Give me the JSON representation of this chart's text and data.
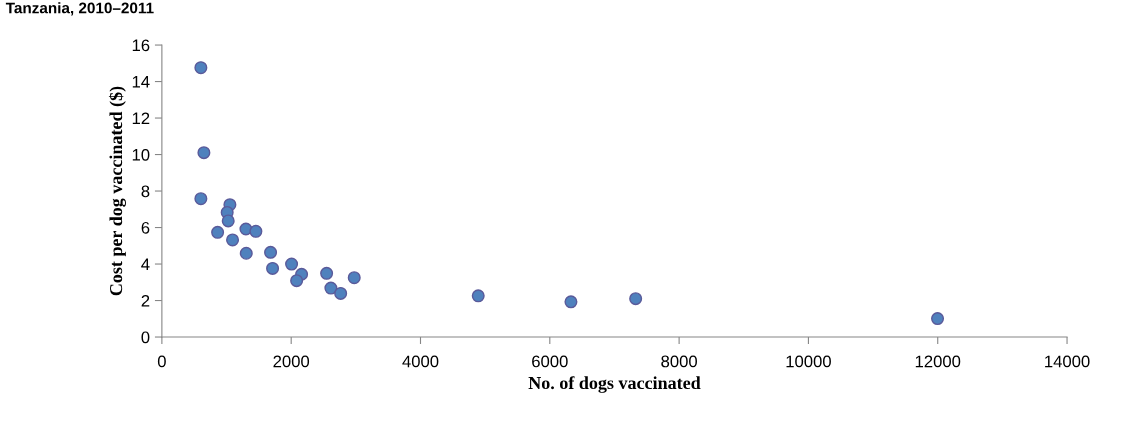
{
  "chart_data": {
    "type": "scatter",
    "title": "Tanzania, 2010–2011",
    "xlabel": "No. of dogs vaccinated",
    "ylabel": "Cost per dog vaccinated ($)",
    "x": [
      603,
      650,
      603,
      1052,
      1010,
      1026,
      862,
      1300,
      1454,
      1093,
      1305,
      1681,
      1712,
      2006,
      2161,
      2084,
      2548,
      2614,
      2765,
      2975,
      4893,
      6327,
      7328,
      11997
    ],
    "series": [
      {
        "color": "#4f81bd",
        "values": [
          14.76,
          10.1,
          7.58,
          7.25,
          6.83,
          6.36,
          5.74,
          5.92,
          5.79,
          5.32,
          4.59,
          4.64,
          3.76,
          4.0,
          3.44,
          3.09,
          3.49,
          2.68,
          2.39,
          3.25,
          2.26,
          1.93,
          2.1,
          1.01
        ]
      }
    ],
    "xlim": [
      0,
      14000
    ],
    "xticks": [
      0,
      2000,
      4000,
      6000,
      8000,
      10000,
      12000,
      14000
    ],
    "ylim": [
      0,
      16
    ],
    "yticks": [
      0,
      2,
      4,
      6,
      8,
      10,
      12,
      14,
      16
    ],
    "marker": "circle",
    "grid": false,
    "legend": false
  }
}
